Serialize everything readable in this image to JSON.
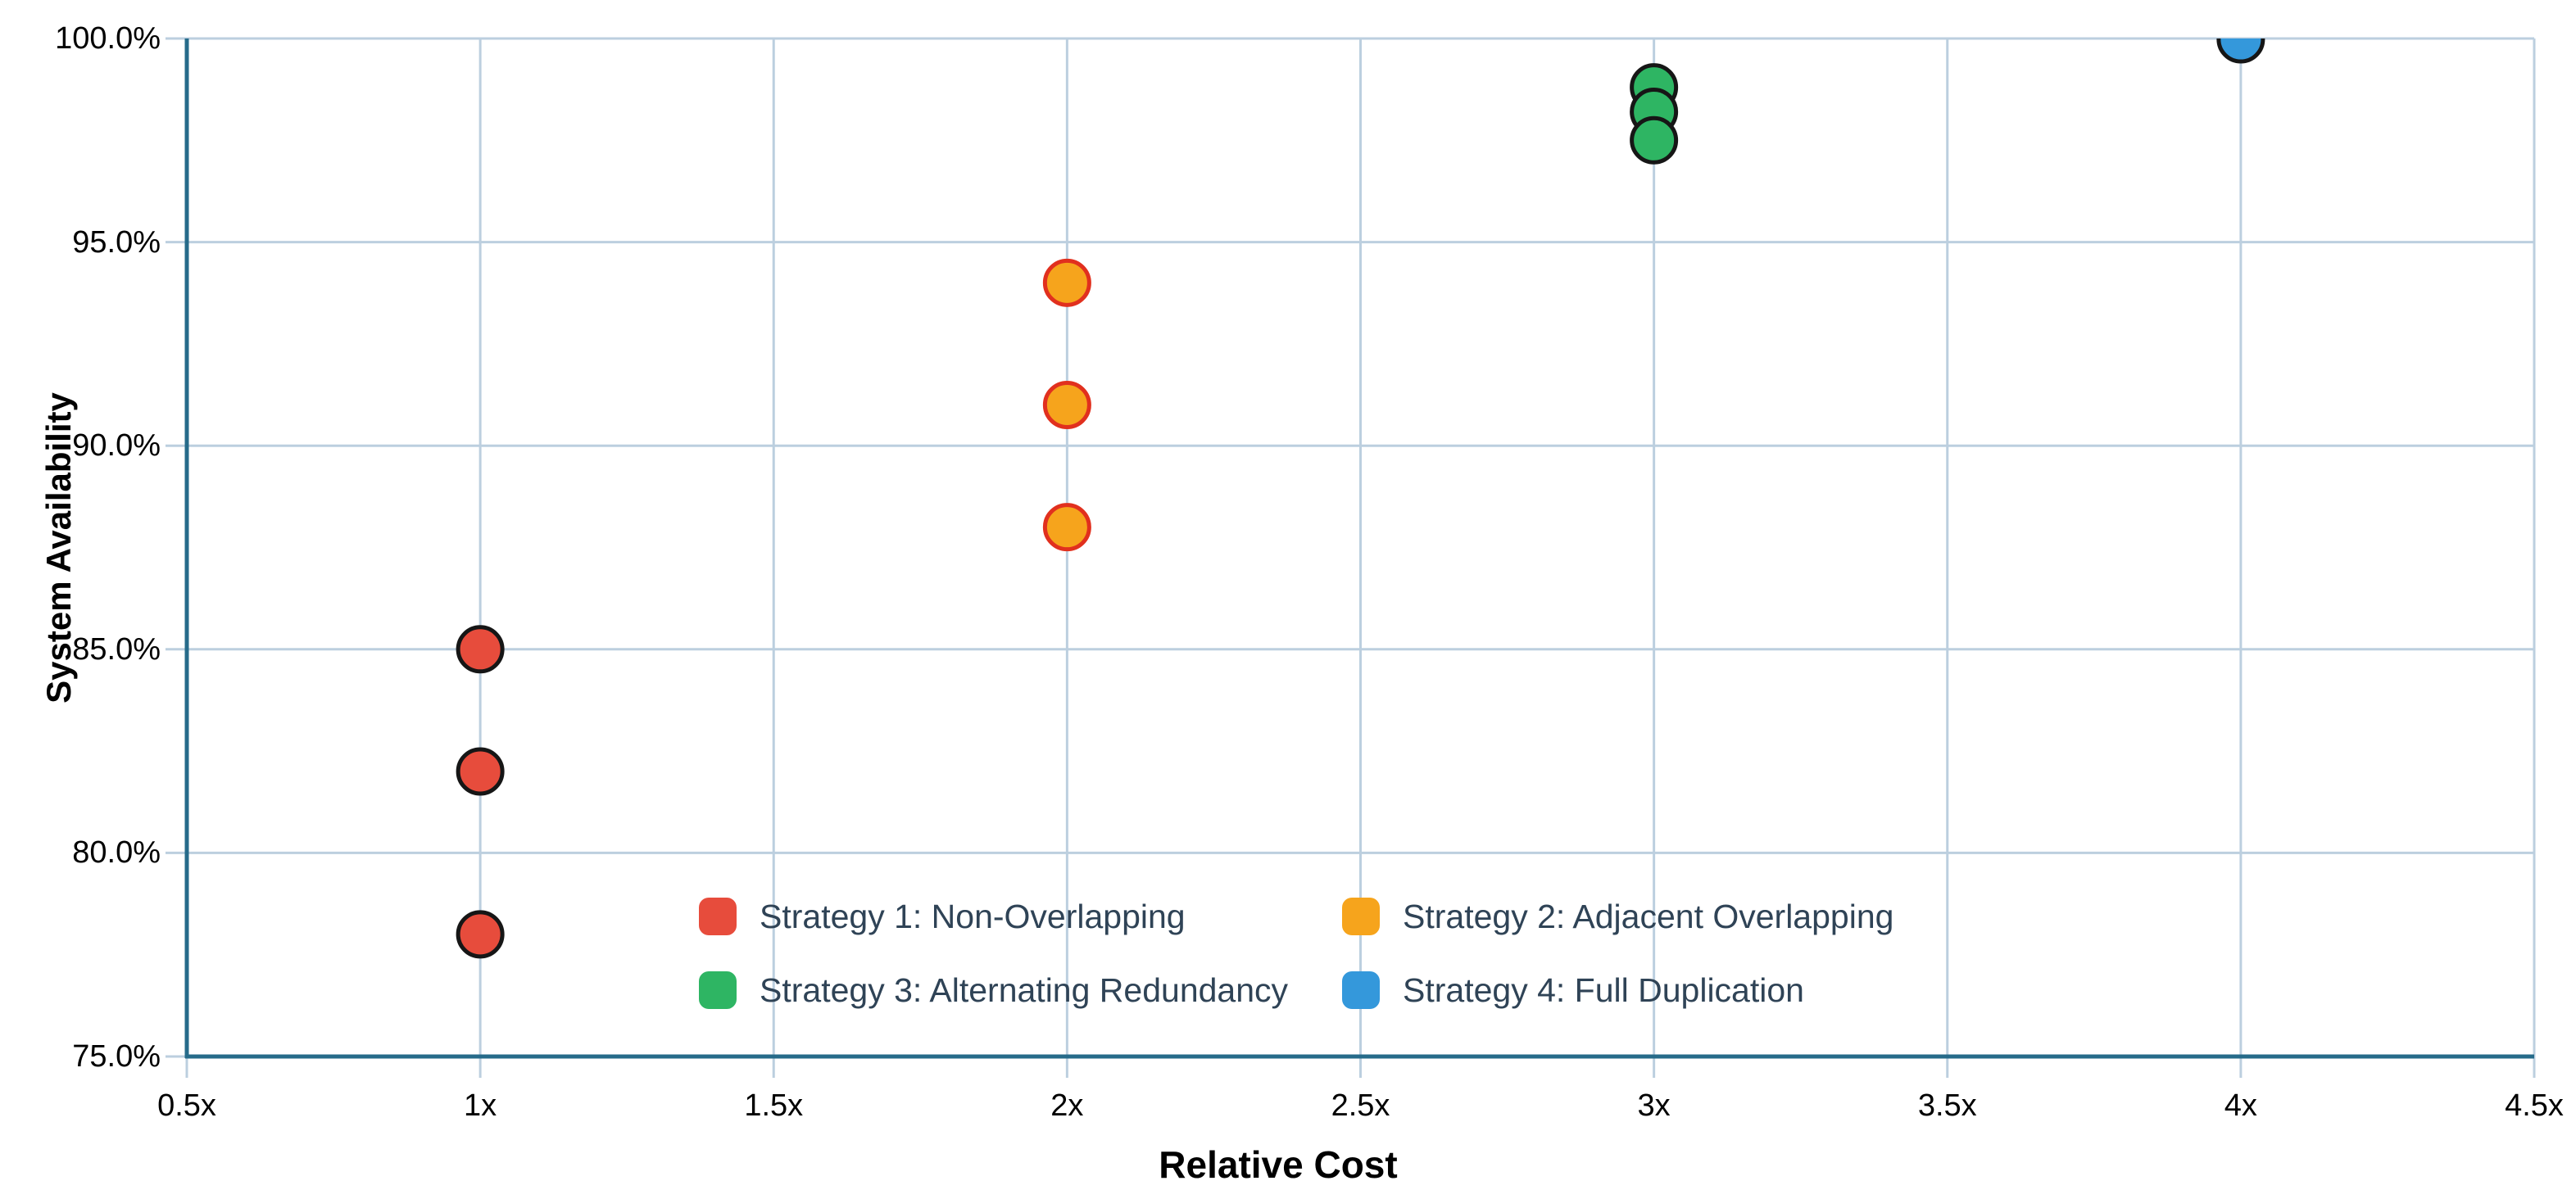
{
  "chart_data": {
    "type": "scatter",
    "title": "",
    "xlabel": "Relative Cost",
    "ylabel": "System Availability",
    "xlim": [
      0.5,
      4.5
    ],
    "ylim": [
      75,
      100
    ],
    "grid": true,
    "legend_position": "inside-bottom-center",
    "x_ticks": {
      "values": [
        0.5,
        1,
        1.5,
        2,
        2.5,
        3,
        3.5,
        4,
        4.5
      ],
      "labels": [
        "0.5x",
        "1x",
        "1.5x",
        "2x",
        "2.5x",
        "3x",
        "3.5x",
        "4x",
        "4.5x"
      ]
    },
    "y_ticks": {
      "values": [
        75,
        80,
        85,
        90,
        95,
        100
      ],
      "labels": [
        "75.0%",
        "80.0%",
        "85.0%",
        "90.0%",
        "95.0%",
        "100.0%"
      ]
    },
    "series": [
      {
        "name": "Strategy 1: Non-Overlapping",
        "fill": "#e74c3c",
        "stroke": "#161616",
        "points": [
          {
            "x": 1,
            "y": 85.0
          },
          {
            "x": 1,
            "y": 82.0
          },
          {
            "x": 1,
            "y": 78.0
          }
        ]
      },
      {
        "name": "Strategy 2: Adjacent Overlapping",
        "fill": "#f6a41c",
        "stroke": "#e1301e",
        "points": [
          {
            "x": 2,
            "y": 94.0
          },
          {
            "x": 2,
            "y": 91.0
          },
          {
            "x": 2,
            "y": 88.0
          }
        ]
      },
      {
        "name": "Strategy 3: Alternating Redundancy",
        "fill": "#2eb563",
        "stroke": "#161616",
        "points": [
          {
            "x": 3,
            "y": 98.8
          },
          {
            "x": 3,
            "y": 98.2
          },
          {
            "x": 3,
            "y": 97.5
          }
        ]
      },
      {
        "name": "Strategy 4: Full Duplication",
        "fill": "#3498db",
        "stroke": "#161616",
        "points": [
          {
            "x": 4,
            "y": 99.98
          }
        ]
      }
    ]
  },
  "colors": {
    "background": "#ffffff",
    "axis_line": "#266b8a",
    "gridline": "#bccfdf",
    "tick_text": "#000000",
    "axis_title_text": "#000000",
    "legend_text": "#2f4356"
  }
}
